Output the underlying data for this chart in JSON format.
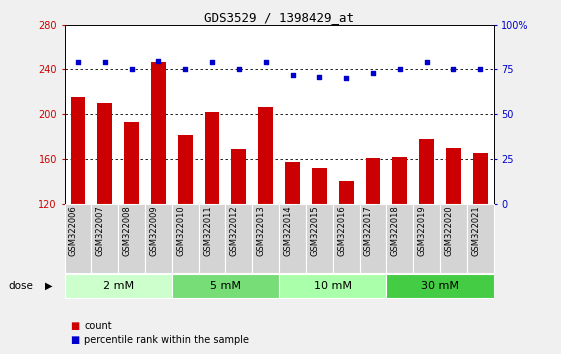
{
  "title": "GDS3529 / 1398429_at",
  "samples": [
    "GSM322006",
    "GSM322007",
    "GSM322008",
    "GSM322009",
    "GSM322010",
    "GSM322011",
    "GSM322012",
    "GSM322013",
    "GSM322014",
    "GSM322015",
    "GSM322016",
    "GSM322017",
    "GSM322018",
    "GSM322019",
    "GSM322020",
    "GSM322021"
  ],
  "bar_values": [
    215,
    210,
    193,
    247,
    181,
    202,
    169,
    206,
    157,
    152,
    140,
    161,
    162,
    178,
    170,
    165
  ],
  "dot_values": [
    79,
    79,
    75,
    80,
    75,
    79,
    75,
    79,
    72,
    71,
    70,
    73,
    75,
    79,
    75,
    75
  ],
  "bar_color": "#cc0000",
  "dot_color": "#0000cc",
  "ymin": 120,
  "ymax": 280,
  "y2min": 0,
  "y2max": 100,
  "yticks": [
    120,
    160,
    200,
    240,
    280
  ],
  "y2ticks": [
    0,
    25,
    50,
    75,
    100
  ],
  "y2ticklabels": [
    "0",
    "25",
    "50",
    "75",
    "100%"
  ],
  "dose_groups": [
    {
      "label": "2 mM",
      "start": 0,
      "end": 4,
      "color": "#ccffcc"
    },
    {
      "label": "5 mM",
      "start": 4,
      "end": 8,
      "color": "#77dd77"
    },
    {
      "label": "10 mM",
      "start": 8,
      "end": 12,
      "color": "#aaffaa"
    },
    {
      "label": "30 mM",
      "start": 12,
      "end": 16,
      "color": "#44cc44"
    }
  ],
  "dose_label": "dose",
  "legend_count_label": "count",
  "legend_pct_label": "percentile rank within the sample",
  "cell_bg": "#d4d4d4",
  "cell_border": "#ffffff",
  "plot_bg": "#ffffff",
  "fig_bg": "#f0f0f0",
  "grid_color": "#000000"
}
